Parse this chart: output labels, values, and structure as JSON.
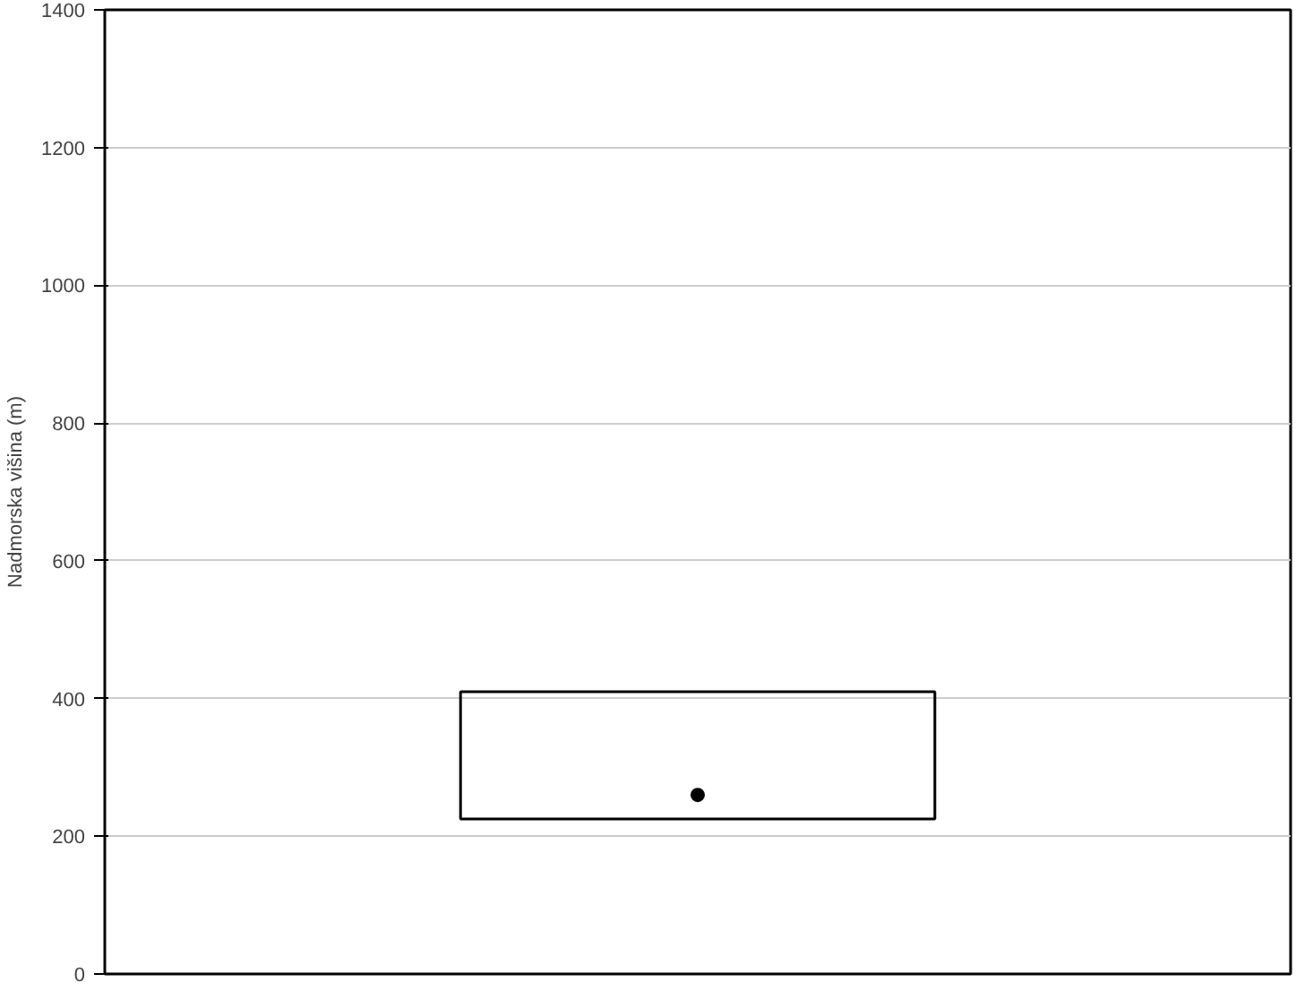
{
  "chart_data": {
    "type": "box",
    "ylabel": "Nadmorska višina (m)",
    "categories": [
      null
    ],
    "boxes": [
      {
        "low": 225,
        "q1": 225,
        "median": 260,
        "q3": 410,
        "high": 410
      }
    ],
    "color": "#000000",
    "ylim": [
      0,
      1400
    ],
    "yticks": [
      0,
      200,
      400,
      600,
      800,
      1000,
      1200,
      1400
    ],
    "grid": "y",
    "marker": "circle"
  }
}
